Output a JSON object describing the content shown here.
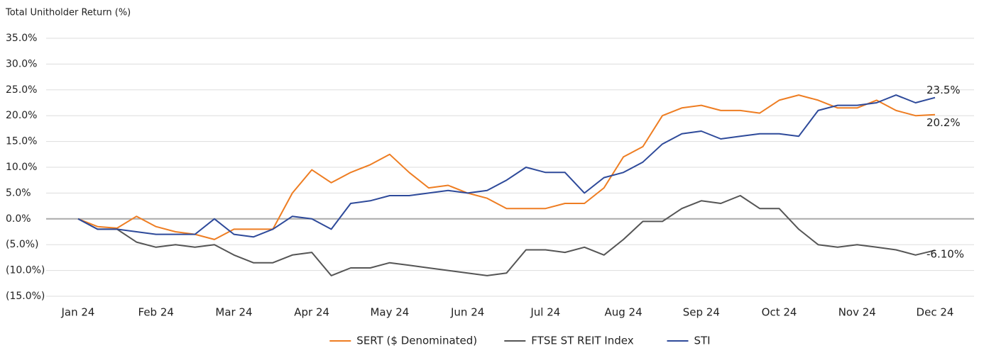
{
  "chart_data": {
    "type": "line",
    "y_axis_label": "Total Unitholder Return (%)",
    "categories": [
      "Jan 24",
      null,
      null,
      null,
      "Feb 24",
      null,
      null,
      null,
      "Mar 24",
      null,
      null,
      null,
      "Apr 24",
      null,
      null,
      null,
      "May 24",
      null,
      null,
      null,
      "Jun 24",
      null,
      null,
      null,
      "Jul 24",
      null,
      null,
      null,
      "Aug 24",
      null,
      null,
      null,
      "Sep 24",
      null,
      null,
      null,
      "Oct 24",
      null,
      null,
      null,
      "Nov 24",
      null,
      null,
      null,
      "Dec 24"
    ],
    "series": [
      {
        "name": "SERT ($ Denominated)",
        "color": "#ee7d22",
        "values": [
          0,
          -1.5,
          -1.8,
          0.5,
          -1.5,
          -2.5,
          -3,
          -4,
          -2,
          -2,
          -2,
          5,
          9.5,
          7,
          9,
          10.5,
          12.5,
          9,
          6,
          6.5,
          5,
          4,
          2,
          2,
          2,
          3,
          3,
          6,
          12,
          14,
          20,
          21.5,
          22,
          21,
          21,
          20.5,
          23,
          24,
          23,
          21.5,
          21.5,
          23,
          21,
          20,
          20.2
        ],
        "value_labels": [
          null,
          null,
          null,
          null,
          null,
          null,
          null,
          null,
          null,
          null,
          null,
          null,
          null,
          null,
          null,
          null,
          null,
          null,
          null,
          null,
          null,
          null,
          null,
          null,
          null,
          null,
          null,
          null,
          null,
          null,
          null,
          null,
          null,
          null,
          null,
          null,
          null,
          null,
          null,
          null,
          null,
          null,
          null,
          null,
          "20.2%"
        ]
      },
      {
        "name": "FTSE ST REIT Index",
        "color": "#555555",
        "values": [
          0,
          -2,
          -2,
          -4.5,
          -5.5,
          -5,
          -5.5,
          -5,
          -7,
          -8.5,
          -8.5,
          -7,
          -6.5,
          -11,
          -9.5,
          -9.5,
          -8.5,
          -9,
          -9.5,
          -10,
          -10.5,
          -11,
          -10.5,
          -6,
          -6,
          -6.5,
          -5.5,
          -7,
          -4,
          -0.5,
          -0.5,
          2,
          3.5,
          3,
          4.5,
          2,
          2,
          -2,
          -5,
          -5.5,
          -5,
          -5.5,
          -6,
          -7,
          -6.1
        ],
        "value_labels": [
          null,
          null,
          null,
          null,
          null,
          null,
          null,
          null,
          null,
          null,
          null,
          null,
          null,
          null,
          null,
          null,
          null,
          null,
          null,
          null,
          null,
          null,
          null,
          null,
          null,
          null,
          null,
          null,
          null,
          null,
          null,
          null,
          null,
          null,
          null,
          null,
          null,
          null,
          null,
          null,
          null,
          null,
          null,
          null,
          "-6.10%"
        ]
      },
      {
        "name": "STI",
        "color": "#2e4a9a",
        "values": [
          0,
          -2,
          -2,
          -2.5,
          -3,
          -3,
          -3,
          0,
          -3,
          -3.5,
          -2,
          0.5,
          0,
          -2,
          3,
          3.5,
          4.5,
          4.5,
          5,
          5.5,
          5,
          5.5,
          7.5,
          10,
          9,
          9,
          5,
          8,
          9,
          11,
          14.5,
          16.5,
          17,
          15.5,
          16,
          16.5,
          16.5,
          16,
          21,
          22,
          22,
          22.5,
          24,
          22.5,
          23.5
        ],
        "value_labels": [
          null,
          null,
          null,
          null,
          null,
          null,
          null,
          null,
          null,
          null,
          null,
          null,
          null,
          null,
          null,
          null,
          null,
          null,
          null,
          null,
          null,
          null,
          null,
          null,
          null,
          null,
          null,
          null,
          null,
          null,
          null,
          null,
          null,
          null,
          null,
          null,
          null,
          null,
          null,
          null,
          null,
          null,
          null,
          null,
          "23.5%"
        ]
      }
    ],
    "ylim": [
      -15,
      35
    ],
    "yticks": [
      {
        "value": 35,
        "label": "35.0%"
      },
      {
        "value": 30,
        "label": "30.0%"
      },
      {
        "value": 25,
        "label": "25.0%"
      },
      {
        "value": 20,
        "label": "20.0%"
      },
      {
        "value": 15,
        "label": "15.0%"
      },
      {
        "value": 10,
        "label": "10.0%"
      },
      {
        "value": 5,
        "label": "5.0%"
      },
      {
        "value": 0,
        "label": "0.0%"
      },
      {
        "value": -5,
        "label": "(5.0%)"
      },
      {
        "value": -10,
        "label": "(10.0%)"
      },
      {
        "value": -15,
        "label": "(15.0%)"
      }
    ],
    "grid": true,
    "legend": "bottom"
  }
}
